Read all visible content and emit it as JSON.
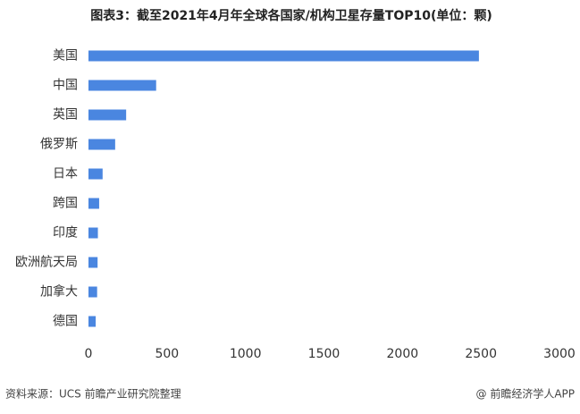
{
  "chart_data": {
    "type": "bar",
    "orientation": "horizontal",
    "title": "图表3：截至2021年4月年全球各国家/机构卫星存量TOP10(单位：颗)",
    "categories": [
      "美国",
      "中国",
      "英国",
      "俄罗斯",
      "日本",
      "跨国",
      "印度",
      "欧洲航天局",
      "加拿大",
      "德国"
    ],
    "values": [
      2487,
      431,
      240,
      170,
      90,
      68,
      60,
      58,
      55,
      46
    ],
    "color": "#4a86e0",
    "xlim": [
      0,
      3000
    ],
    "xticks": [
      0,
      500,
      1000,
      1500,
      2000,
      2500,
      3000
    ],
    "grid": false,
    "source": "资料来源：UCS 前瞻产业研究院整理",
    "credit": "@ 前瞻经济学人APP"
  }
}
